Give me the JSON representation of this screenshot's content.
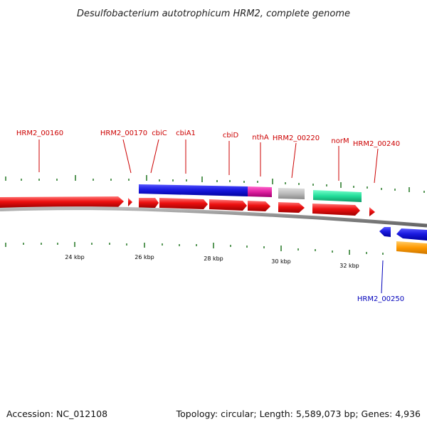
{
  "title": "Desulfobacterium autotrophicum HRM2, complete genome",
  "footer": {
    "accession": "Accession: NC_012108",
    "summary": "Topology: circular; Length: 5,589,073 bp; Genes: 4,936"
  },
  "scale": {
    "ticks": [
      "24 kbp",
      "26 kbp",
      "28 kbp",
      "30 kbp",
      "32 kbp"
    ]
  },
  "gene_labels": {
    "hrm2_00160": "HRM2_00160",
    "hrm2_00170": "HRM2_00170",
    "cbic": "cbiC",
    "cbia1": "cbiA1",
    "cbid": "cbiD",
    "ntha": "nthA",
    "hrm2_00220": "HRM2_00220",
    "norm": "norM",
    "hrm2_00240": "HRM2_00240",
    "hrm2_00250": "HRM2_00250"
  },
  "colors": {
    "cds_forward": "#ee1111",
    "cds_reverse": "#1111ee",
    "cog_blue": "#1a1ae0",
    "cog_magenta": "#e020a0",
    "cog_gray": "#bbbbbb",
    "cog_green": "#22dd99",
    "cog_orange": "#ff9900",
    "backbone": "#888888",
    "ticks": "#227722",
    "label_red": "#cc0000",
    "label_blue": "#0000bb"
  }
}
